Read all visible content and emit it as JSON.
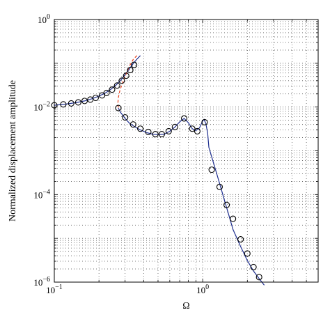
{
  "chart_data": {
    "type": "line",
    "xscale": "log",
    "yscale": "log",
    "xlim": [
      0.1,
      6
    ],
    "ylim": [
      1e-06,
      1
    ],
    "grid": true,
    "xlabel": "Ω",
    "ylabel": "Normalized displacement amplitude",
    "x_ticks": [
      {
        "value": 0.1,
        "mantissa": "10",
        "exponent": "−1"
      },
      {
        "value": 1,
        "mantissa": "10",
        "exponent": "0"
      }
    ],
    "y_ticks": [
      {
        "value": 1,
        "mantissa": "10",
        "exponent": "0"
      },
      {
        "value": 0.01,
        "mantissa": "10",
        "exponent": "−2"
      },
      {
        "value": 0.0001,
        "mantissa": "10",
        "exponent": "−4"
      },
      {
        "value": 1e-06,
        "mantissa": "10",
        "exponent": "−6"
      }
    ],
    "series": [
      {
        "style": "line",
        "color": "#1f2f8f",
        "x": [
          0.1,
          0.12,
          0.14,
          0.16,
          0.18,
          0.2,
          0.22,
          0.24,
          0.26,
          0.28,
          0.3,
          0.32,
          0.34,
          0.36,
          0.38
        ],
        "y": [
          0.011,
          0.0117,
          0.0126,
          0.0138,
          0.0155,
          0.0178,
          0.0208,
          0.0252,
          0.0315,
          0.041,
          0.055,
          0.074,
          0.098,
          0.124,
          0.15
        ]
      },
      {
        "style": "dashed",
        "color": "#e8401c",
        "x": [
          0.36,
          0.34,
          0.32,
          0.3,
          0.285,
          0.275,
          0.27,
          0.268,
          0.27
        ],
        "y": [
          0.15,
          0.122,
          0.085,
          0.05,
          0.032,
          0.022,
          0.016,
          0.012,
          0.0095
        ]
      },
      {
        "style": "line",
        "color": "#1f2f8f",
        "x": [
          0.27,
          0.28,
          0.3,
          0.32,
          0.35,
          0.38,
          0.42,
          0.46,
          0.5,
          0.55,
          0.6,
          0.65,
          0.7,
          0.75,
          0.8,
          0.85,
          0.9,
          0.95,
          1.0,
          1.02,
          1.05,
          1.08,
          1.1,
          1.2,
          1.3,
          1.4,
          1.5,
          1.6,
          1.8,
          2.0,
          2.2,
          2.4,
          2.6
        ],
        "y": [
          0.0095,
          0.0075,
          0.0055,
          0.0043,
          0.0035,
          0.003,
          0.0026,
          0.0024,
          0.00235,
          0.0024,
          0.0028,
          0.0035,
          0.0046,
          0.0055,
          0.0044,
          0.0032,
          0.0029,
          0.0033,
          0.0048,
          0.0052,
          0.0042,
          0.0025,
          0.0012,
          0.00045,
          0.00018,
          7.5e-05,
          3.4e-05,
          1.6e-05,
          6.5e-06,
          3.1e-06,
          1.8e-06,
          1.2e-06,
          8.5e-07
        ]
      }
    ],
    "markers": {
      "shape": "circle",
      "fill": "none",
      "color": "#000000",
      "x": [
        0.1,
        0.115,
        0.13,
        0.145,
        0.16,
        0.175,
        0.19,
        0.21,
        0.225,
        0.245,
        0.265,
        0.285,
        0.305,
        0.325,
        0.345,
        0.27,
        0.3,
        0.34,
        0.38,
        0.43,
        0.48,
        0.53,
        0.59,
        0.65,
        0.75,
        0.85,
        0.92,
        1.03,
        1.15,
        1.3,
        1.45,
        1.6,
        1.8,
        2.0,
        2.2,
        2.4
      ],
      "y": [
        0.011,
        0.0115,
        0.0121,
        0.0128,
        0.0138,
        0.0148,
        0.0162,
        0.0185,
        0.021,
        0.025,
        0.031,
        0.04,
        0.052,
        0.07,
        0.092,
        0.0095,
        0.0058,
        0.004,
        0.0032,
        0.0027,
        0.0024,
        0.0024,
        0.0028,
        0.0035,
        0.0055,
        0.0032,
        0.0028,
        0.0045,
        0.00037,
        0.00015,
        5.8e-05,
        2.8e-05,
        9.5e-06,
        4.5e-06,
        2.2e-06,
        1.3e-06
      ]
    }
  }
}
